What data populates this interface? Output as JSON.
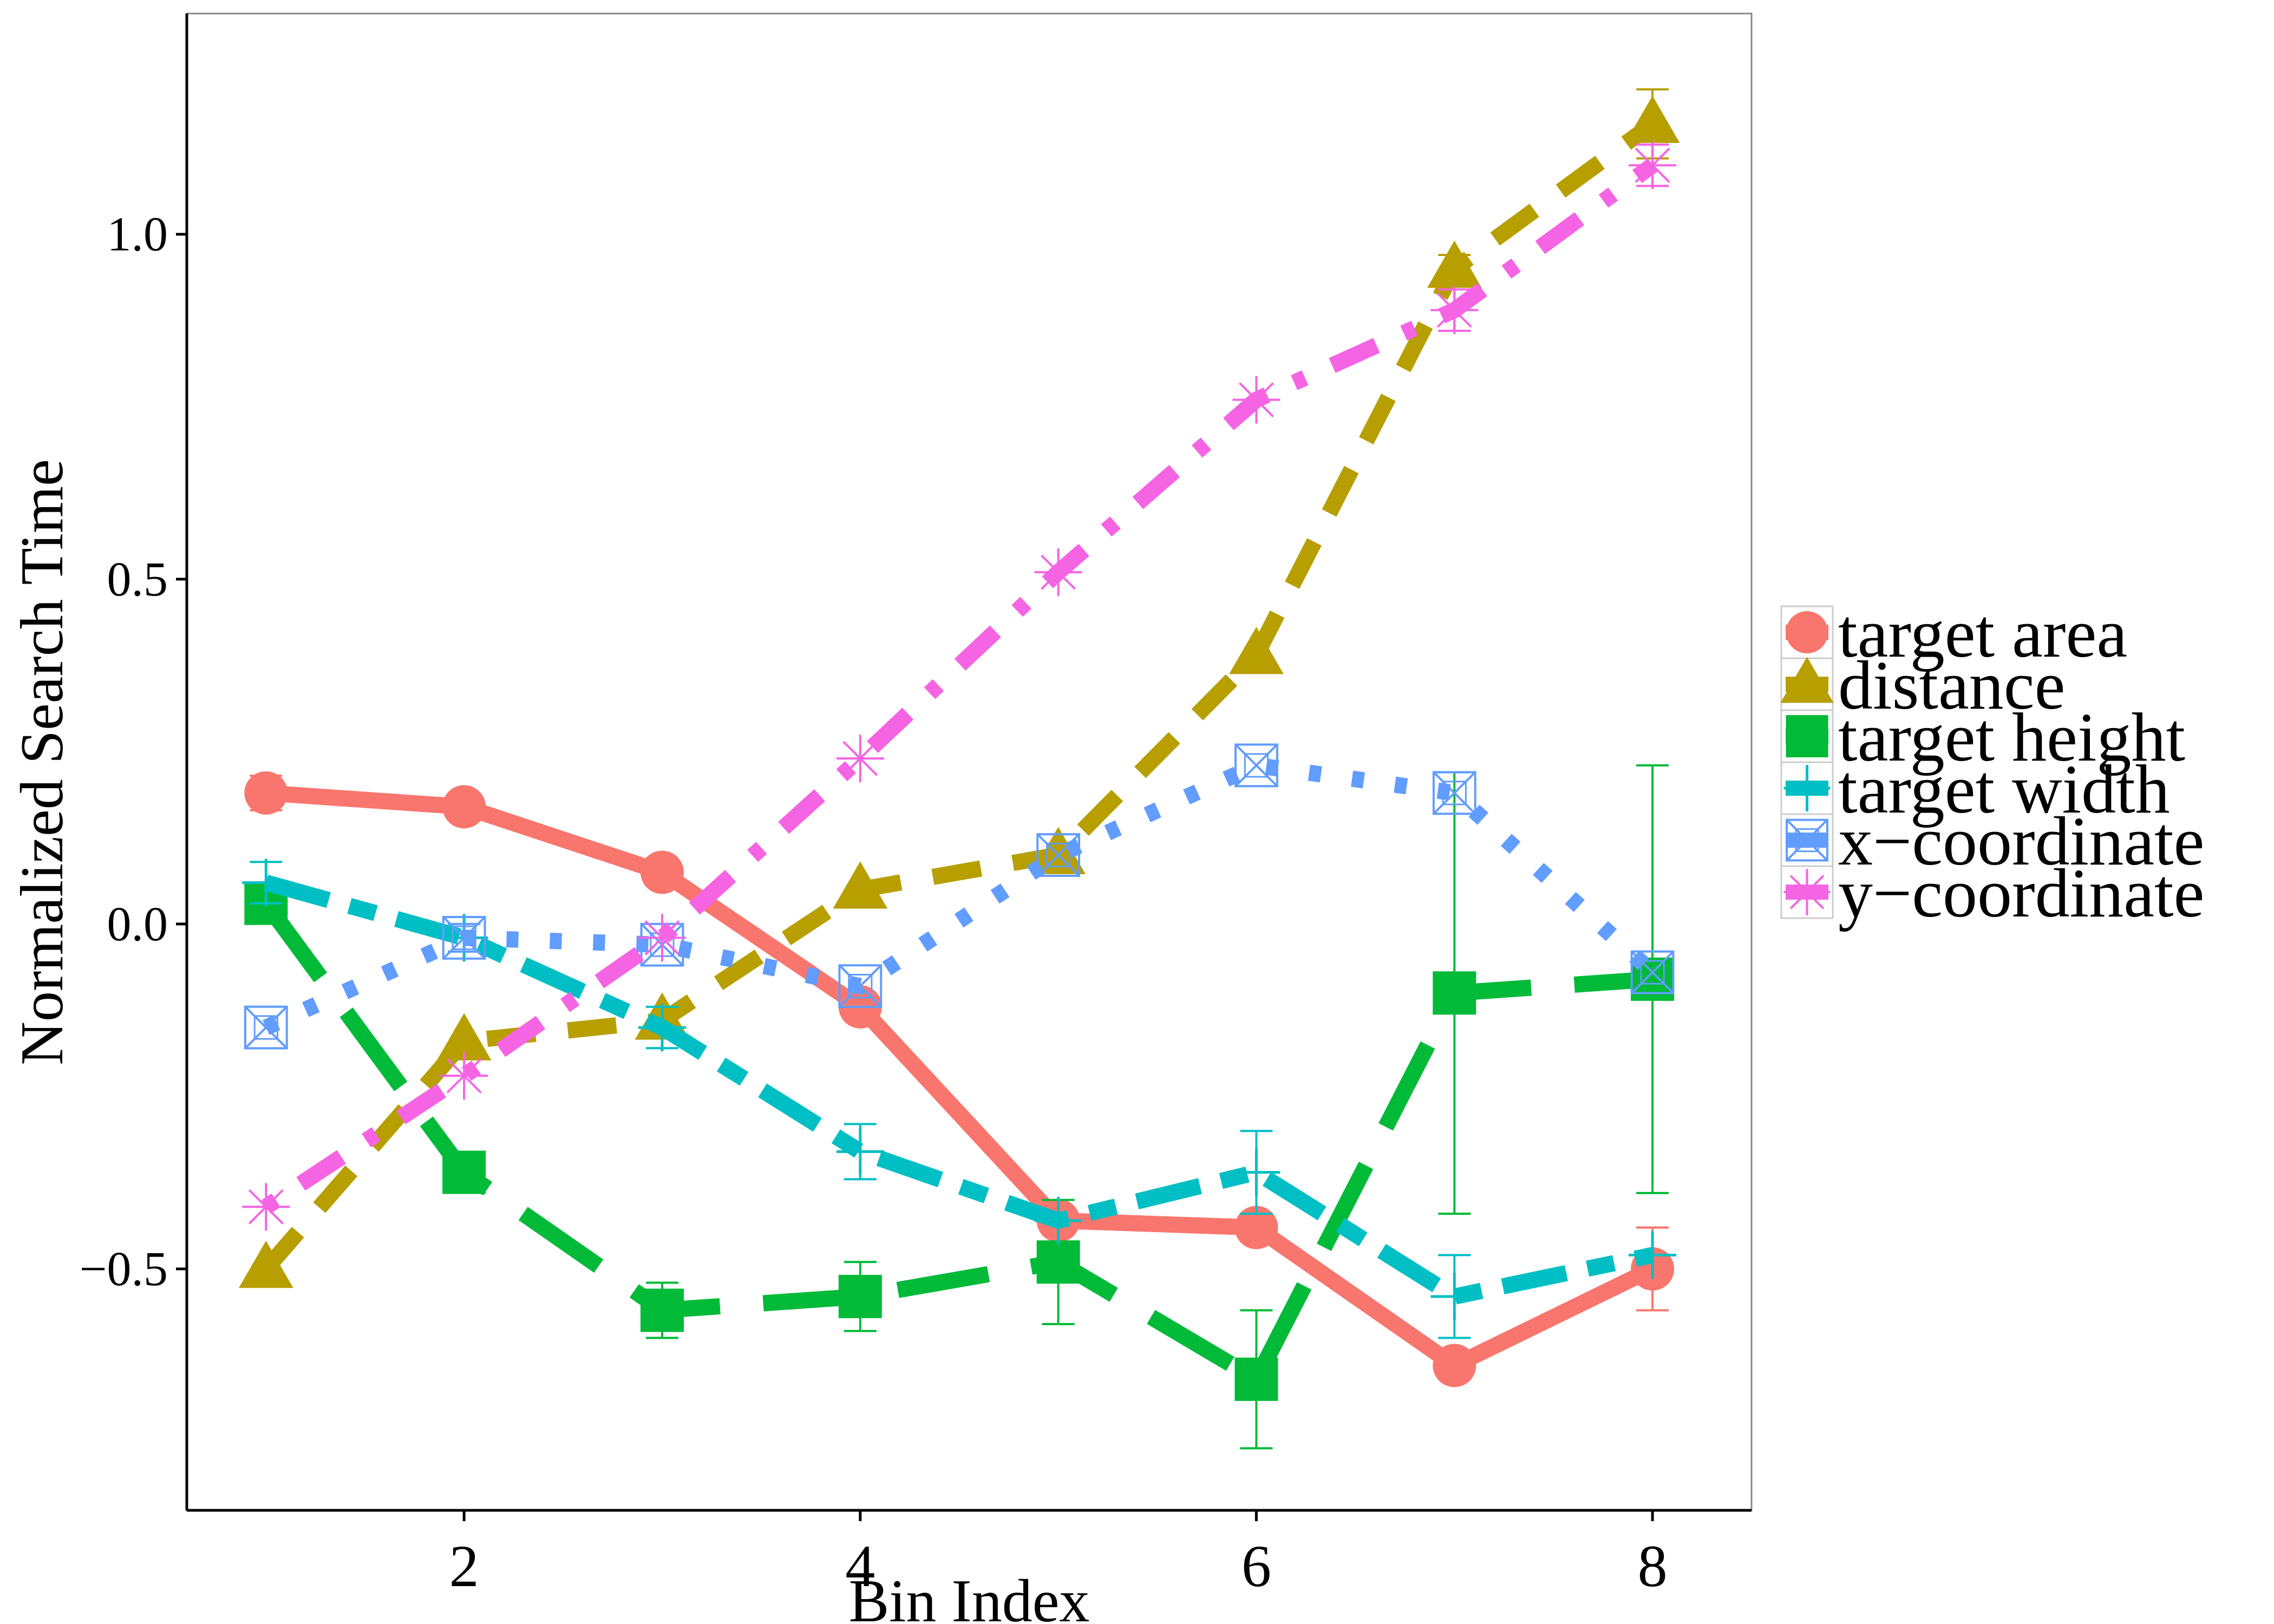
{
  "chart_data": {
    "type": "line",
    "title": "",
    "xlabel": "Bin Index",
    "ylabel": "Normalized Search Time",
    "xlim": [
      0.6,
      8.5
    ],
    "ylim": [
      -0.85,
      1.32
    ],
    "xticks": [
      2,
      4,
      6,
      8
    ],
    "xtick_labels": [
      "2",
      "4",
      "6",
      "8"
    ],
    "yticks": [
      -0.5,
      0.0,
      0.5,
      1.0
    ],
    "ytick_labels": [
      "−0.5",
      "0.0",
      "0.5",
      "1.0"
    ],
    "grid": false,
    "legend_position": "right",
    "x": [
      1,
      2,
      3,
      4,
      5,
      6,
      7,
      8
    ],
    "series": [
      {
        "name": "target area",
        "color": "#F8766D",
        "dash": "solid",
        "marker": "circle",
        "values": [
          0.19,
          0.17,
          0.075,
          -0.12,
          -0.43,
          -0.44,
          -0.64,
          -0.5
        ],
        "err": [
          0.025,
          0.0,
          0.0,
          0.0,
          0.0,
          0.02,
          0.02,
          0.06
        ]
      },
      {
        "name": "distance",
        "color": "#B79F00",
        "dash": "dashed",
        "marker": "triangle",
        "values": [
          -0.5,
          -0.17,
          -0.14,
          0.05,
          0.1,
          0.39,
          0.95,
          1.16
        ],
        "err": [
          0.0,
          0.0,
          0.0,
          0.0,
          0.0,
          0.0,
          0.02,
          0.05
        ]
      },
      {
        "name": "target height",
        "color": "#00BA38",
        "dash": "longdash",
        "marker": "square",
        "values": [
          0.03,
          -0.36,
          -0.56,
          -0.54,
          -0.49,
          -0.66,
          -0.1,
          -0.08
        ],
        "err": [
          0.0,
          0.0,
          0.04,
          0.05,
          0.09,
          0.1,
          0.32,
          0.31
        ]
      },
      {
        "name": "target width",
        "color": "#00BFC4",
        "dash": "twodash",
        "marker": "plus",
        "values": [
          0.06,
          -0.02,
          -0.15,
          -0.33,
          -0.43,
          -0.36,
          -0.54,
          -0.48
        ],
        "err": [
          0.03,
          0.02,
          0.03,
          0.04,
          0.0,
          0.06,
          0.06,
          0.0
        ]
      },
      {
        "name": "x−coordinate",
        "color": "#619CFF",
        "dash": "dotted",
        "marker": "boxx",
        "values": [
          -0.15,
          -0.02,
          -0.03,
          -0.09,
          0.1,
          0.23,
          0.19,
          -0.07
        ],
        "err": [
          0.0,
          0.02,
          0.0,
          0.0,
          0.0,
          0.0,
          0.0,
          0.0
        ]
      },
      {
        "name": "y−coordinate",
        "color": "#F564E3",
        "dash": "dotdash",
        "marker": "asterisk",
        "values": [
          -0.41,
          -0.22,
          -0.02,
          0.24,
          0.51,
          0.76,
          0.89,
          1.1
        ],
        "err": [
          0.0,
          0.0,
          0.0,
          0.0,
          0.0,
          0.0,
          0.03,
          0.03
        ]
      }
    ]
  }
}
